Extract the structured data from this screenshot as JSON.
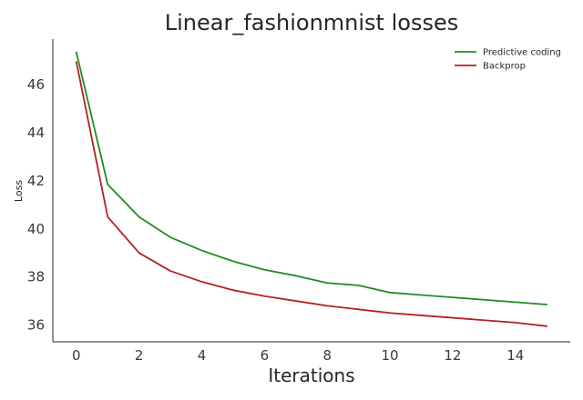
{
  "chart_data": {
    "type": "line",
    "title": "Linear_fashionmnist losses",
    "xlabel": "Iterations",
    "ylabel": "Loss",
    "xlim": [
      -0.75,
      15.75
    ],
    "ylim": [
      35.3,
      47.9
    ],
    "x_ticks": [
      0,
      2,
      4,
      6,
      8,
      10,
      12,
      14
    ],
    "y_ticks": [
      36,
      38,
      40,
      42,
      44,
      46
    ],
    "grid": false,
    "legend_position": "top-right",
    "x": [
      0,
      1,
      2,
      3,
      4,
      5,
      6,
      7,
      8,
      9,
      10,
      11,
      12,
      13,
      14,
      15
    ],
    "series": [
      {
        "name": "Predictive coding",
        "color": "#228b22",
        "values": [
          47.35,
          41.85,
          40.5,
          39.65,
          39.1,
          38.65,
          38.3,
          38.05,
          37.75,
          37.65,
          37.35,
          37.25,
          37.15,
          37.05,
          36.95,
          36.85
        ]
      },
      {
        "name": "Backprop",
        "color": "#b22222",
        "values": [
          46.95,
          40.5,
          39.0,
          38.25,
          37.8,
          37.45,
          37.2,
          37.0,
          36.8,
          36.65,
          36.5,
          36.4,
          36.3,
          36.2,
          36.1,
          35.95
        ]
      }
    ]
  }
}
